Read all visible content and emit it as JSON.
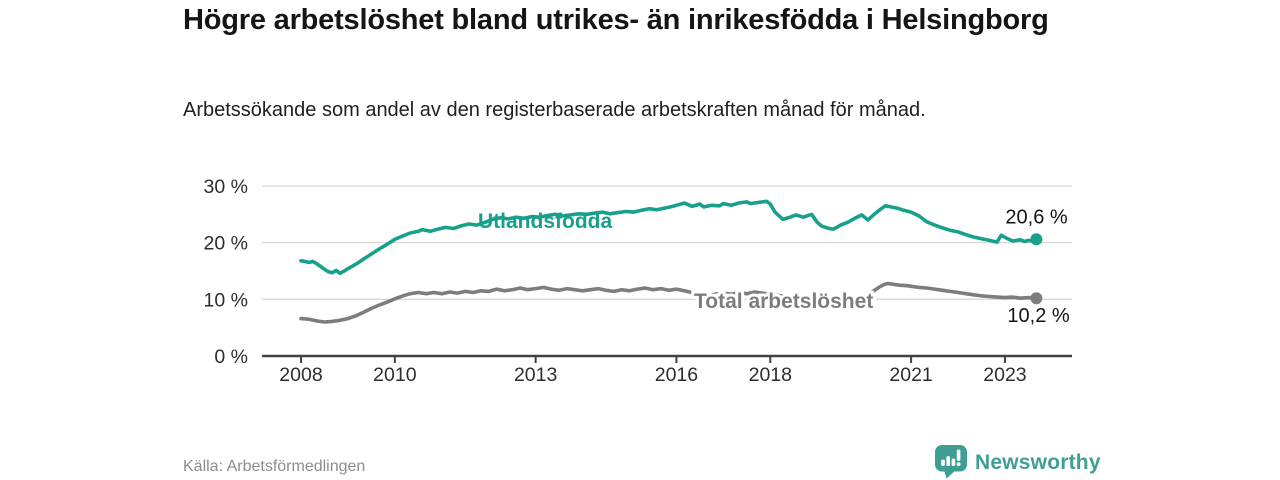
{
  "header": {
    "title": "Högre arbetslöshet bland utrikes- än inrikesfödda i Helsingborg",
    "subtitle": "Arbetssökande som andel av den registerbaserade arbetskraften månad för månad."
  },
  "footer": {
    "source": "Källa: Arbetsförmedlingen",
    "brand_name": "Newsworthy",
    "brand_color": "#3f9e94",
    "logo_icon": "speech-bubble-bar-chart-icon"
  },
  "chart_data": {
    "type": "line",
    "xlabel": "",
    "ylabel": "",
    "x_range_years": [
      2008.0,
      2023.67
    ],
    "ylim": [
      0,
      30
    ],
    "grid": "horizontal",
    "legend_position": "inline-labels",
    "colors": {
      "grid": "#d8d8d8",
      "axis": "#414141",
      "tick_text": "#2e2e2e",
      "value_label_text": "#141414"
    },
    "y_ticks": [
      {
        "label": "0 %",
        "value": 0
      },
      {
        "label": "10 %",
        "value": 10
      },
      {
        "label": "20 %",
        "value": 20
      },
      {
        "label": "30 %",
        "value": 30
      }
    ],
    "x_ticks": [
      {
        "label": "2008",
        "year": 2008
      },
      {
        "label": "2010",
        "year": 2010
      },
      {
        "label": "2013",
        "year": 2013
      },
      {
        "label": "2016",
        "year": 2016
      },
      {
        "label": "2018",
        "year": 2018
      },
      {
        "label": "2021",
        "year": 2021
      },
      {
        "label": "2023",
        "year": 2023
      }
    ],
    "series": [
      {
        "name": "utlandsfodda",
        "label": "Utlandsfödda",
        "color": "#17a08c",
        "end_label": "20,6 %",
        "end_value": 20.6,
        "points": [
          [
            2008.0,
            16.8
          ],
          [
            2008.08,
            16.7
          ],
          [
            2008.17,
            16.5
          ],
          [
            2008.25,
            16.7
          ],
          [
            2008.33,
            16.3
          ],
          [
            2008.42,
            15.8
          ],
          [
            2008.5,
            15.3
          ],
          [
            2008.58,
            14.9
          ],
          [
            2008.67,
            14.7
          ],
          [
            2008.75,
            15.1
          ],
          [
            2008.83,
            14.6
          ],
          [
            2008.92,
            15.0
          ],
          [
            2009.0,
            15.4
          ],
          [
            2009.17,
            16.2
          ],
          [
            2009.33,
            17.1
          ],
          [
            2009.5,
            18.0
          ],
          [
            2009.67,
            18.9
          ],
          [
            2009.83,
            19.7
          ],
          [
            2010.0,
            20.6
          ],
          [
            2010.17,
            21.2
          ],
          [
            2010.33,
            21.7
          ],
          [
            2010.5,
            22.0
          ],
          [
            2010.58,
            22.3
          ],
          [
            2010.75,
            22.0
          ],
          [
            2010.92,
            22.4
          ],
          [
            2011.08,
            22.7
          ],
          [
            2011.25,
            22.5
          ],
          [
            2011.42,
            23.0
          ],
          [
            2011.58,
            23.3
          ],
          [
            2011.75,
            23.1
          ],
          [
            2011.92,
            23.6
          ],
          [
            2012.08,
            24.1
          ],
          [
            2012.25,
            24.4
          ],
          [
            2012.42,
            24.2
          ],
          [
            2012.58,
            24.5
          ],
          [
            2012.75,
            24.3
          ],
          [
            2012.92,
            24.6
          ],
          [
            2013.08,
            24.5
          ],
          [
            2013.25,
            24.8
          ],
          [
            2013.42,
            25.0
          ],
          [
            2013.58,
            24.7
          ],
          [
            2013.75,
            24.9
          ],
          [
            2013.92,
            25.1
          ],
          [
            2014.08,
            25.0
          ],
          [
            2014.25,
            25.2
          ],
          [
            2014.42,
            25.4
          ],
          [
            2014.58,
            25.1
          ],
          [
            2014.75,
            25.3
          ],
          [
            2014.92,
            25.5
          ],
          [
            2015.08,
            25.4
          ],
          [
            2015.25,
            25.7
          ],
          [
            2015.42,
            26.0
          ],
          [
            2015.58,
            25.8
          ],
          [
            2015.75,
            26.1
          ],
          [
            2015.92,
            26.4
          ],
          [
            2016.0,
            26.6
          ],
          [
            2016.17,
            27.0
          ],
          [
            2016.25,
            26.7
          ],
          [
            2016.33,
            26.4
          ],
          [
            2016.5,
            26.8
          ],
          [
            2016.58,
            26.3
          ],
          [
            2016.75,
            26.6
          ],
          [
            2016.92,
            26.5
          ],
          [
            2017.0,
            26.9
          ],
          [
            2017.17,
            26.6
          ],
          [
            2017.33,
            27.0
          ],
          [
            2017.5,
            27.2
          ],
          [
            2017.58,
            26.9
          ],
          [
            2017.75,
            27.1
          ],
          [
            2017.92,
            27.3
          ],
          [
            2018.0,
            26.8
          ],
          [
            2018.1,
            25.4
          ],
          [
            2018.27,
            24.1
          ],
          [
            2018.42,
            24.5
          ],
          [
            2018.55,
            24.9
          ],
          [
            2018.7,
            24.5
          ],
          [
            2018.88,
            25.0
          ],
          [
            2019.0,
            23.6
          ],
          [
            2019.1,
            22.9
          ],
          [
            2019.25,
            22.5
          ],
          [
            2019.35,
            22.4
          ],
          [
            2019.5,
            23.1
          ],
          [
            2019.65,
            23.6
          ],
          [
            2019.8,
            24.3
          ],
          [
            2019.95,
            24.9
          ],
          [
            2020.08,
            24.0
          ],
          [
            2020.2,
            24.9
          ],
          [
            2020.35,
            25.9
          ],
          [
            2020.45,
            26.5
          ],
          [
            2020.58,
            26.3
          ],
          [
            2020.7,
            26.1
          ],
          [
            2020.85,
            25.7
          ],
          [
            2021.0,
            25.4
          ],
          [
            2021.17,
            24.7
          ],
          [
            2021.33,
            23.7
          ],
          [
            2021.5,
            23.1
          ],
          [
            2021.67,
            22.6
          ],
          [
            2021.83,
            22.2
          ],
          [
            2022.0,
            21.9
          ],
          [
            2022.17,
            21.4
          ],
          [
            2022.33,
            21.0
          ],
          [
            2022.5,
            20.7
          ],
          [
            2022.67,
            20.4
          ],
          [
            2022.83,
            20.1
          ],
          [
            2022.92,
            21.3
          ],
          [
            2023.08,
            20.6
          ],
          [
            2023.17,
            20.3
          ],
          [
            2023.33,
            20.5
          ],
          [
            2023.42,
            20.2
          ],
          [
            2023.5,
            20.4
          ],
          [
            2023.58,
            20.3
          ],
          [
            2023.67,
            20.6
          ]
        ]
      },
      {
        "name": "total-arbetsloshet",
        "label": "Total arbetslöshet",
        "color": "#7d7d7d",
        "end_label": "10,2 %",
        "end_value": 10.2,
        "points": [
          [
            2008.0,
            6.6
          ],
          [
            2008.17,
            6.5
          ],
          [
            2008.33,
            6.2
          ],
          [
            2008.5,
            6.0
          ],
          [
            2008.67,
            6.1
          ],
          [
            2008.83,
            6.3
          ],
          [
            2009.0,
            6.6
          ],
          [
            2009.17,
            7.1
          ],
          [
            2009.33,
            7.7
          ],
          [
            2009.5,
            8.4
          ],
          [
            2009.67,
            9.0
          ],
          [
            2009.83,
            9.5
          ],
          [
            2010.0,
            10.1
          ],
          [
            2010.17,
            10.6
          ],
          [
            2010.33,
            11.0
          ],
          [
            2010.5,
            11.2
          ],
          [
            2010.67,
            11.0
          ],
          [
            2010.83,
            11.2
          ],
          [
            2011.0,
            11.0
          ],
          [
            2011.17,
            11.3
          ],
          [
            2011.33,
            11.1
          ],
          [
            2011.5,
            11.4
          ],
          [
            2011.67,
            11.2
          ],
          [
            2011.83,
            11.5
          ],
          [
            2012.0,
            11.4
          ],
          [
            2012.17,
            11.8
          ],
          [
            2012.33,
            11.5
          ],
          [
            2012.5,
            11.7
          ],
          [
            2012.67,
            12.0
          ],
          [
            2012.83,
            11.7
          ],
          [
            2013.0,
            11.9
          ],
          [
            2013.17,
            12.1
          ],
          [
            2013.33,
            11.8
          ],
          [
            2013.5,
            11.6
          ],
          [
            2013.67,
            11.9
          ],
          [
            2013.83,
            11.7
          ],
          [
            2014.0,
            11.5
          ],
          [
            2014.17,
            11.7
          ],
          [
            2014.33,
            11.9
          ],
          [
            2014.5,
            11.6
          ],
          [
            2014.67,
            11.4
          ],
          [
            2014.83,
            11.7
          ],
          [
            2015.0,
            11.5
          ],
          [
            2015.17,
            11.8
          ],
          [
            2015.33,
            12.0
          ],
          [
            2015.5,
            11.7
          ],
          [
            2015.67,
            11.9
          ],
          [
            2015.83,
            11.6
          ],
          [
            2016.0,
            11.8
          ],
          [
            2016.17,
            11.5
          ],
          [
            2016.33,
            11.2
          ],
          [
            2016.5,
            10.8
          ],
          [
            2016.67,
            10.6
          ],
          [
            2016.83,
            10.9
          ],
          [
            2017.0,
            11.1
          ],
          [
            2017.17,
            10.9
          ],
          [
            2017.33,
            11.2
          ],
          [
            2017.5,
            11.0
          ],
          [
            2017.67,
            11.3
          ],
          [
            2017.83,
            11.1
          ],
          [
            2018.0,
            10.9
          ],
          [
            2018.17,
            10.7
          ],
          [
            2018.33,
            10.5
          ],
          [
            2018.5,
            10.4
          ],
          [
            2018.67,
            10.6
          ],
          [
            2018.83,
            10.4
          ],
          [
            2019.0,
            10.2
          ],
          [
            2019.17,
            10.4
          ],
          [
            2019.33,
            10.2
          ],
          [
            2019.5,
            10.0
          ],
          [
            2019.67,
            10.2
          ],
          [
            2019.83,
            10.1
          ],
          [
            2020.0,
            10.4
          ],
          [
            2020.08,
            10.7
          ],
          [
            2020.17,
            11.3
          ],
          [
            2020.33,
            12.2
          ],
          [
            2020.42,
            12.6
          ],
          [
            2020.5,
            12.8
          ],
          [
            2020.58,
            12.7
          ],
          [
            2020.75,
            12.5
          ],
          [
            2020.92,
            12.4
          ],
          [
            2021.0,
            12.3
          ],
          [
            2021.17,
            12.1
          ],
          [
            2021.33,
            12.0
          ],
          [
            2021.5,
            11.8
          ],
          [
            2021.67,
            11.6
          ],
          [
            2021.83,
            11.4
          ],
          [
            2022.0,
            11.2
          ],
          [
            2022.17,
            11.0
          ],
          [
            2022.33,
            10.8
          ],
          [
            2022.5,
            10.6
          ],
          [
            2022.67,
            10.5
          ],
          [
            2022.83,
            10.4
          ],
          [
            2023.0,
            10.3
          ],
          [
            2023.17,
            10.4
          ],
          [
            2023.33,
            10.2
          ],
          [
            2023.5,
            10.3
          ],
          [
            2023.67,
            10.2
          ]
        ]
      }
    ]
  }
}
